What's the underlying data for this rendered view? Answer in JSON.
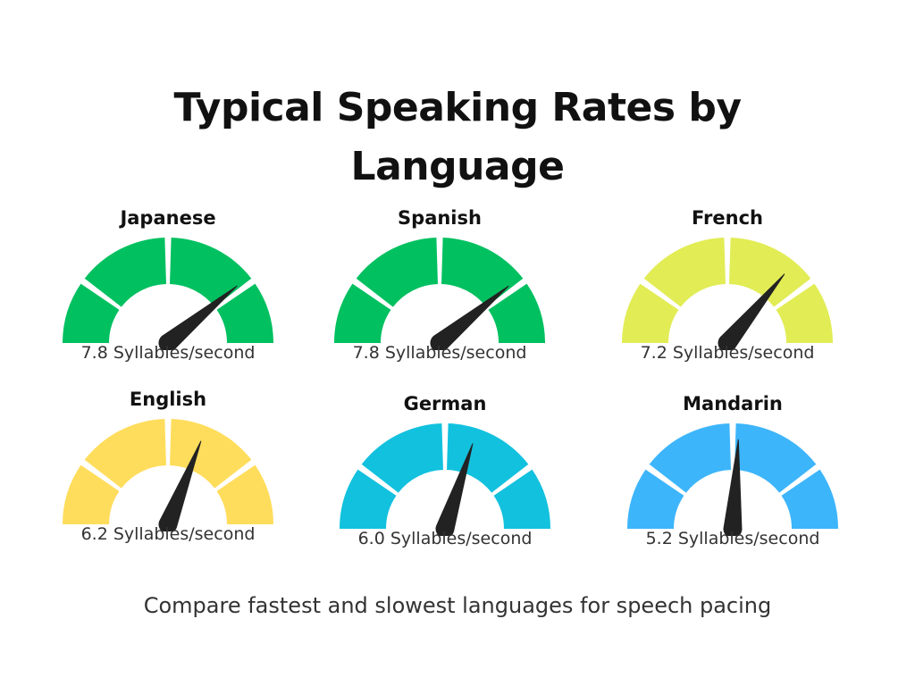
{
  "title": "Typical Speaking Rates by Language",
  "footer": "Compare fastest and slowest languages for speech pacing",
  "chart_data": {
    "type": "gauge",
    "title": "Typical Speaking Rates by Language",
    "unit": "Syllables/second",
    "scale": [
      0,
      10
    ],
    "gauges": [
      {
        "label": "Japanese",
        "value": 7.8,
        "value_text": "7.8",
        "unit": "Syllables/second",
        "color": "#00C060"
      },
      {
        "label": "Spanish",
        "value": 7.8,
        "value_text": "7.8",
        "unit": "Syllables/second",
        "color": "#00C060"
      },
      {
        "label": "French",
        "value": 7.2,
        "value_text": "7.2",
        "unit": "Syllables/second",
        "color": "#E2EC55"
      },
      {
        "label": "English",
        "value": 6.2,
        "value_text": "6.2",
        "unit": "Syllables/second",
        "color": "#FFDD5C"
      },
      {
        "label": "German",
        "value": 6.0,
        "value_text": "6.0",
        "unit": "Syllables/second",
        "color": "#12C1DE"
      },
      {
        "label": "Mandarin",
        "value": 5.2,
        "value_text": "5.2",
        "unit": "Syllables/second",
        "color": "#3DB5FA"
      }
    ],
    "needle_color": "#222222"
  }
}
